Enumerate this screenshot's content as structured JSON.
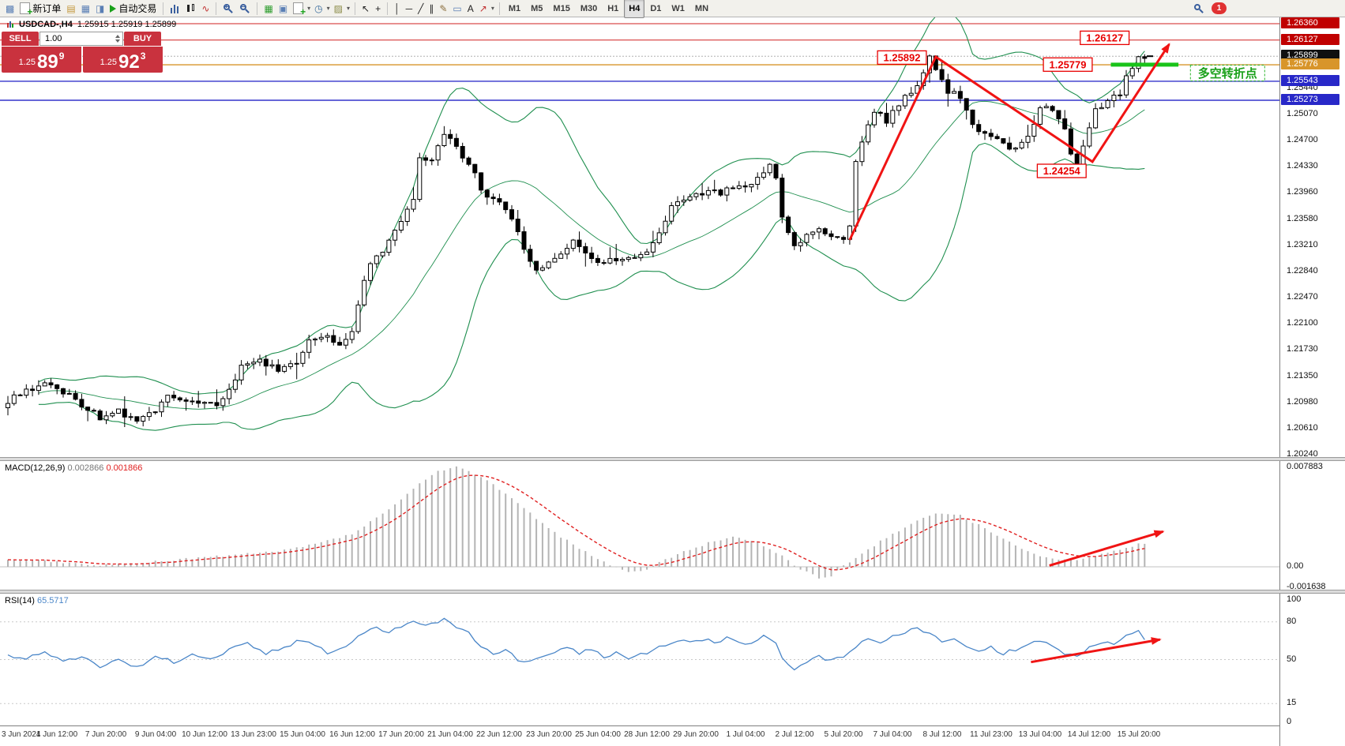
{
  "window": {
    "symbol_title": "USDCAD-,H4",
    "quote_line": "1.25915 1.25919 1.25899"
  },
  "toolbar": {
    "timeframes": [
      "M1",
      "M5",
      "M15",
      "M30",
      "H1",
      "H4",
      "D1",
      "W1",
      "MN"
    ],
    "active_timeframe": "H4",
    "items": [
      {
        "type": "ico",
        "name": "app-icon",
        "glyph": "▩",
        "color": "#5a7fb5"
      },
      {
        "type": "btn",
        "name": "new-order-button",
        "label": "新订单",
        "icon": "doc-plus"
      },
      {
        "type": "ico",
        "name": "profiles-icon",
        "glyph": "▤",
        "color": "#c2963a"
      },
      {
        "type": "ico",
        "name": "market-watch-icon",
        "glyph": "▦",
        "color": "#5a7fb5"
      },
      {
        "type": "ico",
        "name": "navigator-icon",
        "glyph": "◨",
        "color": "#5a7fb5"
      },
      {
        "type": "btn",
        "name": "autotrading-button",
        "label": "自动交易",
        "icon": "play"
      },
      {
        "type": "sep"
      },
      {
        "type": "ico",
        "name": "bar-chart-icon",
        "cls": "ic-bars"
      },
      {
        "type": "ico",
        "name": "candle-chart-icon",
        "cls": "ic-candles"
      },
      {
        "type": "ico",
        "name": "line-chart-icon",
        "glyph": "∿",
        "color": "#c03030"
      },
      {
        "type": "sep"
      },
      {
        "type": "ico",
        "name": "zoom-in-icon",
        "cls": "ic-zin"
      },
      {
        "type": "ico",
        "name": "zoom-out-icon",
        "cls": "ic-zout"
      },
      {
        "type": "sep"
      },
      {
        "type": "ico",
        "name": "tile-windows-icon",
        "glyph": "▦",
        "color": "#2f9e2f"
      },
      {
        "type": "ico",
        "name": "cascade-windows-icon",
        "glyph": "▣",
        "color": "#5a7fb5"
      },
      {
        "type": "ico",
        "name": "indicators-icon",
        "cls": "ic-doc-plus"
      },
      {
        "type": "dd",
        "name": "indicators-dropdown"
      },
      {
        "type": "ico",
        "name": "periods-icon",
        "glyph": "◷",
        "color": "#3c6e9e"
      },
      {
        "type": "dd",
        "name": "periods-dropdown"
      },
      {
        "type": "ico",
        "name": "templates-icon",
        "glyph": "▨",
        "color": "#8a8a46"
      },
      {
        "type": "dd",
        "name": "templates-dropdown"
      },
      {
        "type": "sep"
      },
      {
        "type": "ico",
        "name": "cursor-icon",
        "glyph": "↖",
        "color": "#222222"
      },
      {
        "type": "ico",
        "name": "crosshair-icon",
        "glyph": "+",
        "color": "#222222"
      },
      {
        "type": "sep"
      },
      {
        "type": "ico",
        "name": "vertical-line-icon",
        "glyph": "│",
        "color": "#222222"
      },
      {
        "type": "ico",
        "name": "horizontal-line-icon",
        "glyph": "─",
        "color": "#222222"
      },
      {
        "type": "ico",
        "name": "trendline-icon",
        "glyph": "╱",
        "color": "#222222"
      },
      {
        "type": "ico",
        "name": "channel-icon",
        "glyph": "∥",
        "color": "#222222"
      },
      {
        "type": "ico",
        "name": "fibonacci-icon",
        "glyph": "✎",
        "color": "#8a6d3b"
      },
      {
        "type": "ico",
        "name": "shapes-icon",
        "glyph": "▭",
        "color": "#5a7fb5"
      },
      {
        "type": "ico",
        "name": "text-icon",
        "glyph": "A",
        "color": "#222222"
      },
      {
        "type": "ico",
        "name": "arrow-tool-icon",
        "glyph": "↗",
        "color": "#c03030"
      },
      {
        "type": "dd",
        "name": "shapes-dropdown"
      },
      {
        "type": "sep"
      },
      {
        "type": "tfgroup"
      },
      {
        "type": "spacer"
      },
      {
        "type": "ico",
        "name": "search-icon",
        "cls": "ic-search"
      },
      {
        "type": "badge",
        "name": "notification-badge",
        "label": "1"
      },
      {
        "type": "gap"
      }
    ]
  },
  "trade_panel": {
    "sell_label": "SELL",
    "buy_label": "BUY",
    "volume": "1.00",
    "sell_pre": "1.25",
    "sell_big": "89",
    "sell_sup": "9",
    "buy_pre": "1.25",
    "buy_big": "92",
    "buy_sup": "3"
  },
  "colors": {
    "bands": "#1f8f4f",
    "hist": "#b4b4b4",
    "signal": "#e02020",
    "rsi": "#4a86c8",
    "annotation": "#f01414",
    "label_text": "#e80000",
    "green": "#19c319",
    "sellbuy": "#c9323e",
    "zero_line": "#c0c0c0",
    "level_line": "#c8c8c8"
  },
  "chart_data": {
    "type": "candlestick",
    "symbol": "USDCAD",
    "timeframe": "H4",
    "candle_count": 186,
    "scale": {
      "price_top": 1.2645,
      "price_bottom": 1.20207,
      "macd_top": 0.008393,
      "macd_bottom": -0.001816,
      "rsi_top": 102.5,
      "rsi_bottom": -2.5
    },
    "bollinger": {
      "period": 20,
      "deviation": 2
    },
    "price_path": [
      [
        0,
        1.21
      ],
      [
        4,
        1.2118
      ],
      [
        7,
        1.2125
      ],
      [
        10,
        1.2108
      ],
      [
        13,
        1.209
      ],
      [
        15,
        1.2075
      ],
      [
        18,
        1.2088
      ],
      [
        21,
        1.2068
      ],
      [
        23,
        1.208
      ],
      [
        26,
        1.2105
      ],
      [
        30,
        1.2098
      ],
      [
        34,
        1.2094
      ],
      [
        36,
        1.2115
      ],
      [
        38,
        1.215
      ],
      [
        41,
        1.216
      ],
      [
        44,
        1.2142
      ],
      [
        47,
        1.2155
      ],
      [
        49,
        1.219
      ],
      [
        52,
        1.2192
      ],
      [
        54,
        1.2178
      ],
      [
        56,
        1.22
      ],
      [
        57,
        1.2238
      ],
      [
        58,
        1.227
      ],
      [
        59,
        1.2295
      ],
      [
        61,
        1.2312
      ],
      [
        63,
        1.2345
      ],
      [
        65,
        1.2372
      ],
      [
        66,
        1.239
      ],
      [
        67,
        1.245
      ],
      [
        69,
        1.244
      ],
      [
        70,
        1.246
      ],
      [
        71,
        1.2478
      ],
      [
        72,
        1.247
      ],
      [
        74,
        1.2445
      ],
      [
        76,
        1.242
      ],
      [
        78,
        1.2388
      ],
      [
        80,
        1.238
      ],
      [
        82,
        1.236
      ],
      [
        84,
        1.2315
      ],
      [
        86,
        1.2285
      ],
      [
        88,
        1.2297
      ],
      [
        90,
        1.231
      ],
      [
        92,
        1.2325
      ],
      [
        94,
        1.2308
      ],
      [
        96,
        1.2297
      ],
      [
        98,
        1.2303
      ],
      [
        100,
        1.2297
      ],
      [
        102,
        1.2308
      ],
      [
        104,
        1.2315
      ],
      [
        106,
        1.2335
      ],
      [
        108,
        1.2375
      ],
      [
        110,
        1.2388
      ],
      [
        112,
        1.2394
      ],
      [
        114,
        1.2398
      ],
      [
        116,
        1.2394
      ],
      [
        118,
        1.2406
      ],
      [
        120,
        1.24
      ],
      [
        122,
        1.242
      ],
      [
        124,
        1.2435
      ],
      [
        125,
        1.2418
      ],
      [
        126,
        1.2365
      ],
      [
        128,
        1.232
      ],
      [
        130,
        1.2335
      ],
      [
        132,
        1.2345
      ],
      [
        134,
        1.2338
      ],
      [
        136,
        1.2326
      ],
      [
        137,
        1.2345
      ],
      [
        138,
        1.244
      ],
      [
        139,
        1.2465
      ],
      [
        141,
        1.2512
      ],
      [
        143,
        1.2498
      ],
      [
        145,
        1.2522
      ],
      [
        147,
        1.254
      ],
      [
        149,
        1.2565
      ],
      [
        150,
        1.2588
      ],
      [
        152,
        1.2556
      ],
      [
        153,
        1.254
      ],
      [
        155,
        1.2532
      ],
      [
        157,
        1.249
      ],
      [
        159,
        1.2477
      ],
      [
        161,
        1.247
      ],
      [
        163,
        1.2458
      ],
      [
        165,
        1.2465
      ],
      [
        167,
        1.249
      ],
      [
        168,
        1.252
      ],
      [
        170,
        1.2512
      ],
      [
        172,
        1.2483
      ],
      [
        173,
        1.245
      ],
      [
        174,
        1.2428
      ],
      [
        175,
        1.2465
      ],
      [
        177,
        1.2512
      ],
      [
        179,
        1.2526
      ],
      [
        181,
        1.2535
      ],
      [
        182,
        1.256
      ],
      [
        184,
        1.2592
      ],
      [
        185,
        1.259
      ]
    ],
    "hlines": [
      {
        "price": 1.2636,
        "color": "#d02020",
        "width": 1
      },
      {
        "price": 1.26127,
        "color": "#d02020",
        "width": 1
      },
      {
        "price": 1.25899,
        "color": "#b0b0b0",
        "width": 1,
        "dash": "2 2"
      },
      {
        "price": 1.25776,
        "color": "#d8952a",
        "width": 1.4
      },
      {
        "price": 1.25543,
        "color": "#3434cc",
        "width": 1.4
      },
      {
        "price": 1.25273,
        "color": "#3434cc",
        "width": 1.4
      }
    ],
    "price_axis": {
      "regular": [
        "1.25440",
        "1.25070",
        "1.24700",
        "1.24330",
        "1.23960",
        "1.23580",
        "1.23210",
        "1.22840",
        "1.22470",
        "1.22100",
        "1.21730",
        "1.21350",
        "1.20980",
        "1.20610",
        "1.20240"
      ],
      "special": [
        {
          "text": "1.26360",
          "price": 1.2636,
          "bg": "#c00000"
        },
        {
          "text": "1.26127",
          "price": 1.26127,
          "bg": "#c00000"
        },
        {
          "text": "1.25899",
          "price": 1.25899,
          "bg": "#101010"
        },
        {
          "text": "1.25776",
          "price": 1.25776,
          "bg": "#d8952a"
        },
        {
          "text": "1.25543",
          "price": 1.25543,
          "bg": "#2828c8"
        },
        {
          "text": "1.25273",
          "price": 1.25273,
          "bg": "#2828c8"
        }
      ]
    },
    "macd": {
      "label": "MACD(12,26,9)",
      "value_main": "0.002866",
      "value_signal": "0.001866",
      "axis": [
        "0.007883",
        "0.00",
        "-0.001638"
      ],
      "path": [
        [
          0,
          0.0006
        ],
        [
          8,
          0.0004
        ],
        [
          14,
          0.0001
        ],
        [
          20,
          0.0002
        ],
        [
          28,
          0.0006
        ],
        [
          36,
          0.0009
        ],
        [
          44,
          0.0012
        ],
        [
          50,
          0.0018
        ],
        [
          56,
          0.0026
        ],
        [
          62,
          0.0045
        ],
        [
          66,
          0.0062
        ],
        [
          70,
          0.0076
        ],
        [
          73,
          0.0079
        ],
        [
          77,
          0.0072
        ],
        [
          82,
          0.0055
        ],
        [
          86,
          0.0038
        ],
        [
          90,
          0.0024
        ],
        [
          94,
          0.0012
        ],
        [
          97,
          0.0004
        ],
        [
          100,
          -0.0003
        ],
        [
          103,
          -0.0004
        ],
        [
          106,
          0.0003
        ],
        [
          110,
          0.0012
        ],
        [
          114,
          0.0019
        ],
        [
          118,
          0.0024
        ],
        [
          122,
          0.0019
        ],
        [
          126,
          0.0009
        ],
        [
          129,
          -0.0002
        ],
        [
          132,
          -0.0009
        ],
        [
          134,
          -0.0007
        ],
        [
          137,
          0.0004
        ],
        [
          140,
          0.0014
        ],
        [
          144,
          0.0026
        ],
        [
          148,
          0.0037
        ],
        [
          152,
          0.0043
        ],
        [
          155,
          0.0041
        ],
        [
          158,
          0.0033
        ],
        [
          162,
          0.0022
        ],
        [
          166,
          0.0012
        ],
        [
          170,
          0.0006
        ],
        [
          174,
          0.0005
        ],
        [
          178,
          0.001
        ],
        [
          182,
          0.0015
        ],
        [
          185,
          0.0019
        ]
      ]
    },
    "rsi": {
      "label": "RSI(14)",
      "value": "65.5717",
      "axis": [
        "100",
        "80",
        "50",
        "15",
        "0"
      ],
      "levels": [
        80,
        50,
        15
      ],
      "path": [
        [
          0,
          54
        ],
        [
          3,
          50
        ],
        [
          6,
          57
        ],
        [
          9,
          48
        ],
        [
          12,
          52
        ],
        [
          15,
          45
        ],
        [
          18,
          50
        ],
        [
          21,
          44
        ],
        [
          24,
          52
        ],
        [
          27,
          48
        ],
        [
          30,
          55
        ],
        [
          33,
          50
        ],
        [
          36,
          58
        ],
        [
          39,
          63
        ],
        [
          42,
          55
        ],
        [
          45,
          60
        ],
        [
          48,
          66
        ],
        [
          51,
          60
        ],
        [
          52,
          55
        ],
        [
          54,
          58
        ],
        [
          56,
          65
        ],
        [
          58,
          72
        ],
        [
          60,
          76
        ],
        [
          62,
          72
        ],
        [
          64,
          77
        ],
        [
          66,
          80
        ],
        [
          68,
          76
        ],
        [
          70,
          80
        ],
        [
          71,
          82
        ],
        [
          73,
          76
        ],
        [
          75,
          72
        ],
        [
          77,
          60
        ],
        [
          79,
          55
        ],
        [
          81,
          57
        ],
        [
          83,
          50
        ],
        [
          85,
          48
        ],
        [
          87,
          53
        ],
        [
          89,
          57
        ],
        [
          91,
          60
        ],
        [
          93,
          55
        ],
        [
          95,
          58
        ],
        [
          97,
          52
        ],
        [
          99,
          55
        ],
        [
          101,
          50
        ],
        [
          103,
          54
        ],
        [
          105,
          57
        ],
        [
          107,
          62
        ],
        [
          109,
          65
        ],
        [
          111,
          63
        ],
        [
          113,
          66
        ],
        [
          115,
          64
        ],
        [
          117,
          67
        ],
        [
          119,
          65
        ],
        [
          121,
          62
        ],
        [
          123,
          68
        ],
        [
          125,
          64
        ],
        [
          126,
          50
        ],
        [
          128,
          43
        ],
        [
          130,
          48
        ],
        [
          132,
          52
        ],
        [
          134,
          49
        ],
        [
          136,
          53
        ],
        [
          138,
          60
        ],
        [
          140,
          68
        ],
        [
          142,
          64
        ],
        [
          144,
          69
        ],
        [
          146,
          72
        ],
        [
          148,
          74
        ],
        [
          150,
          70
        ],
        [
          152,
          64
        ],
        [
          154,
          66
        ],
        [
          156,
          60
        ],
        [
          158,
          57
        ],
        [
          160,
          60
        ],
        [
          162,
          55
        ],
        [
          164,
          58
        ],
        [
          166,
          62
        ],
        [
          168,
          64
        ],
        [
          170,
          62
        ],
        [
          172,
          55
        ],
        [
          174,
          52
        ],
        [
          176,
          60
        ],
        [
          178,
          64
        ],
        [
          180,
          62
        ],
        [
          182,
          68
        ],
        [
          184,
          72
        ],
        [
          185,
          66
        ]
      ]
    },
    "annotations": {
      "zigzag": [
        [
          137,
          1.2329
        ],
        [
          151,
          1.2589
        ],
        [
          176.5,
          1.244
        ],
        [
          189,
          1.2607
        ]
      ],
      "price_labels": [
        {
          "text": "1.25892",
          "idx": 145.5,
          "price": 1.2588
        },
        {
          "text": "1.26127",
          "idx": 178.5,
          "price": 1.2616
        },
        {
          "text": "1.25779",
          "idx": 172.5,
          "price": 1.2578
        },
        {
          "text": "1.24254",
          "idx": 171.5,
          "price": 1.2427
        }
      ],
      "green_line": {
        "i1": 179.5,
        "i2": 190.5,
        "price": 1.25779
      },
      "turn_label": {
        "text": "多空转折点",
        "idx": 198.5,
        "price": 1.2566
      },
      "macd_arrow": [
        [
          169.5,
          0.0001
        ],
        [
          188,
          0.0028
        ]
      ],
      "rsi_arrow": [
        [
          166.5,
          48
        ],
        [
          187.5,
          66
        ]
      ]
    },
    "time_axis": [
      "3 Jun 2021",
      "4 Jun 12:00",
      "7 Jun 20:00",
      "9 Jun 04:00",
      "10 Jun 12:00",
      "13 Jun 23:00",
      "15 Jun 04:00",
      "16 Jun 12:00",
      "17 Jun 20:00",
      "21 Jun 04:00",
      "22 Jun 12:00",
      "23 Jun 20:00",
      "25 Jun 04:00",
      "28 Jun 12:00",
      "29 Jun 20:00",
      "1 Jul 04:00",
      "2 Jul 12:00",
      "5 Jul 20:00",
      "7 Jul 04:00",
      "8 Jul 12:00",
      "11 Jul 23:00",
      "13 Jul 04:00",
      "14 Jul 12:00",
      "15 Jul 20:00"
    ]
  }
}
